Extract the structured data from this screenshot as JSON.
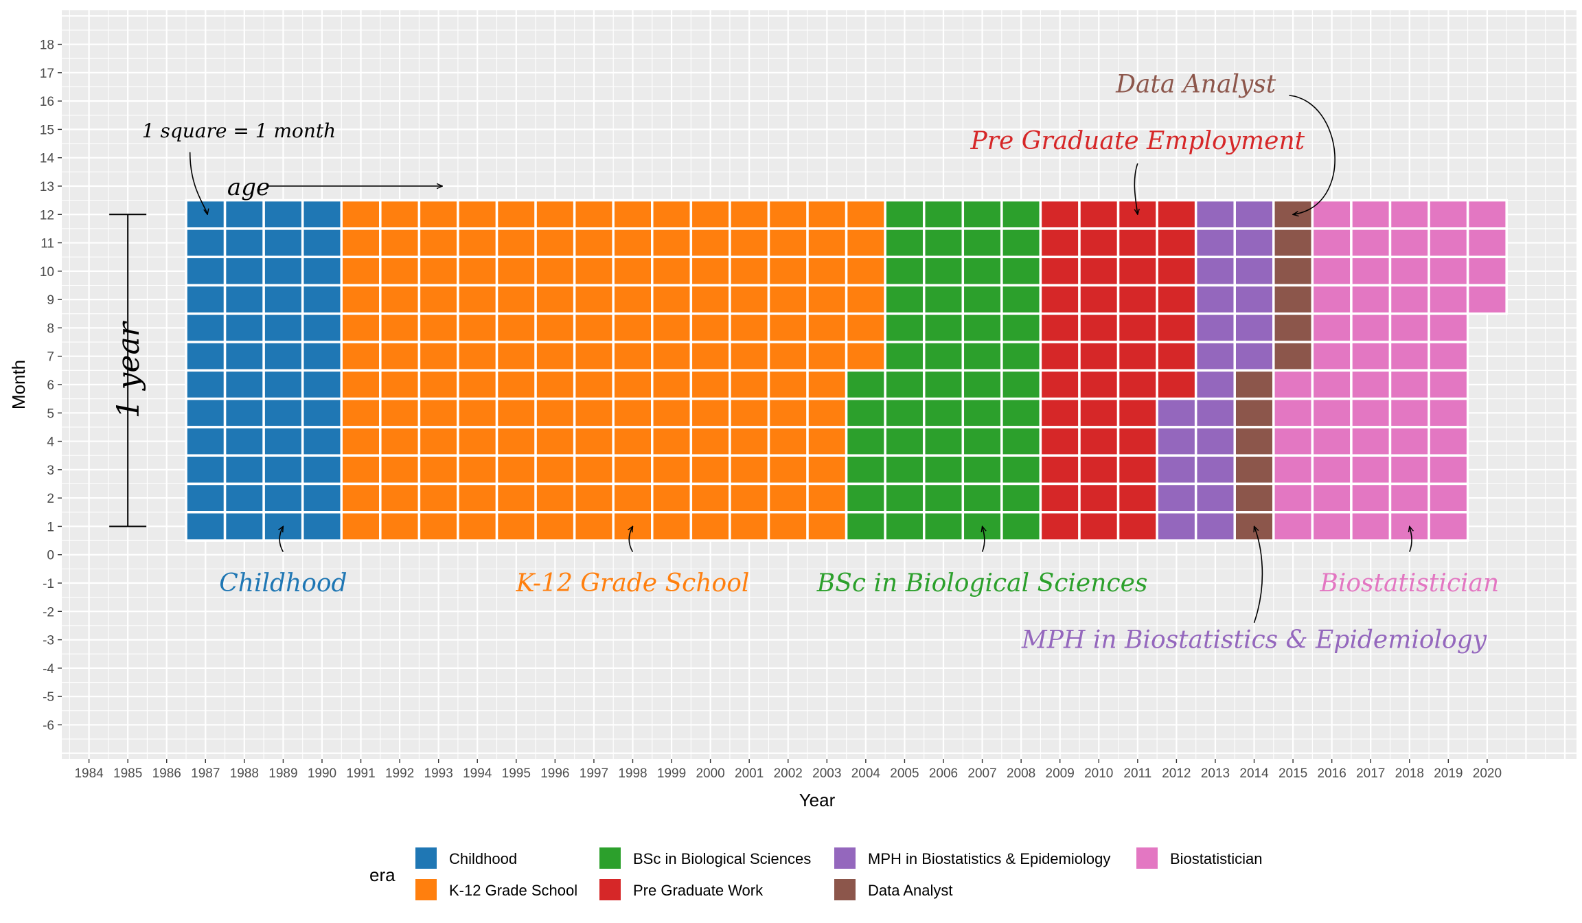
{
  "chart_data": {
    "type": "heatmap",
    "subtype": "waffle",
    "xlabel": "Year",
    "ylabel": "Month",
    "xlim": [
      1983.3,
      2022.3
    ],
    "ylim": [
      -7.2,
      19.2
    ],
    "x_ticks": [
      1984,
      1985,
      1986,
      1987,
      1988,
      1989,
      1990,
      1991,
      1992,
      1993,
      1994,
      1995,
      1996,
      1997,
      1998,
      1999,
      2000,
      2001,
      2002,
      2003,
      2004,
      2005,
      2006,
      2007,
      2008,
      2009,
      2010,
      2011,
      2012,
      2013,
      2014,
      2015,
      2016,
      2017,
      2018,
      2019,
      2020
    ],
    "y_ticks": [
      18,
      17,
      16,
      15,
      14,
      13,
      12,
      11,
      10,
      9,
      8,
      7,
      6,
      5,
      4,
      3,
      2,
      1,
      0,
      -1,
      -2,
      -3,
      -4,
      -5,
      -6
    ],
    "grid": true,
    "background": "#ebebeb",
    "legend_title": "era",
    "legend_position": "bottom",
    "series": [
      {
        "name": "Childhood",
        "color": "#1f77b4",
        "cells": 48
      },
      {
        "name": "K-12 Grade School",
        "color": "#ff7f0e",
        "cells": 162
      },
      {
        "name": "BSc in Biological Sciences",
        "color": "#2ca02c",
        "cells": 54
      },
      {
        "name": "Pre Graduate Work",
        "color": "#d62728",
        "cells": 43
      },
      {
        "name": "MPH in Biostatistics & Epidemiology",
        "color": "#9467bd",
        "cells": 23
      },
      {
        "name": "Data Analyst",
        "color": "#8c564b",
        "cells": 12
      },
      {
        "name": "Biostatistician",
        "color": "#e377c2",
        "cells": 58
      }
    ],
    "start": {
      "year": 1987,
      "month": 12
    },
    "annotations": {
      "scale_note": "1 square = 1 month",
      "age_label": "age",
      "year_label": "1 year",
      "era_labels": [
        {
          "text": "Childhood",
          "x": 1989,
          "y": -1,
          "series": 0
        },
        {
          "text": "K-12 Grade School",
          "x": 1998,
          "y": -1,
          "series": 1
        },
        {
          "text": "BSc in Biological Sciences",
          "x": 2007,
          "y": -1,
          "series": 2
        },
        {
          "text": "Pre Graduate Employment",
          "x": 2011,
          "y": 14.6,
          "series": 3
        },
        {
          "text": "MPH in Biostatistics & Epidemiology",
          "x": 2014,
          "y": -3,
          "series": 4
        },
        {
          "text": "Data Analyst",
          "x": 2012.5,
          "y": 16.6,
          "series": 5
        },
        {
          "text": "Biostatistician",
          "x": 2018,
          "y": -1,
          "series": 6
        }
      ]
    }
  }
}
